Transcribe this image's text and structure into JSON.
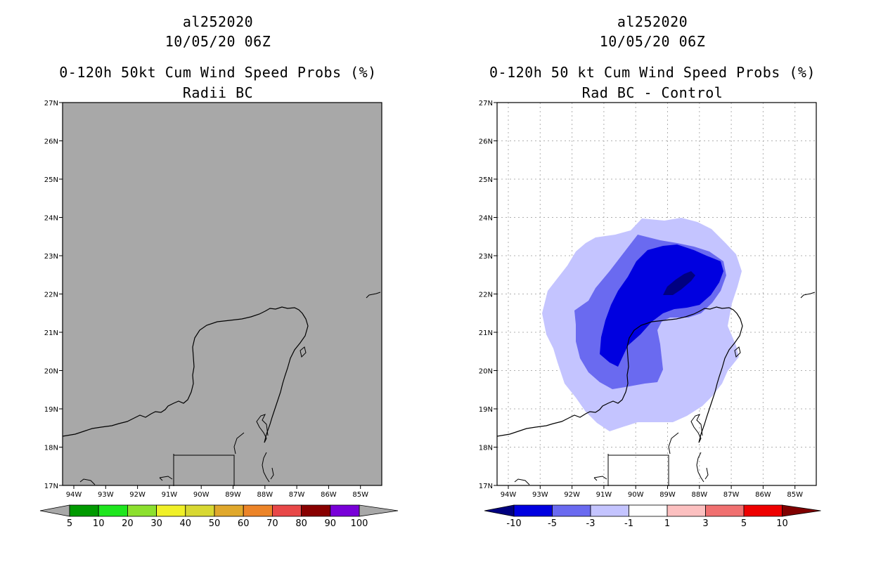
{
  "left_panel": {
    "storm_id": "al252020",
    "datetime": "10/05/20 06Z",
    "product": "0-120h 50kt Cum Wind Speed Probs (%)",
    "subtitle": "Radii BC",
    "background_color": "#a8a8a8",
    "colorbar": {
      "labels": [
        "5",
        "10",
        "20",
        "30",
        "40",
        "50",
        "60",
        "70",
        "80",
        "90",
        "100"
      ],
      "colors": [
        "#009a00",
        "#1ee61e",
        "#8ce02e",
        "#f0f028",
        "#d8d832",
        "#e0a82c",
        "#ec8428",
        "#e84848",
        "#880000",
        "#7800d8"
      ]
    }
  },
  "right_panel": {
    "storm_id": "al252020",
    "datetime": "10/05/20 06Z",
    "product": "0-120h 50 kt Cum Wind Speed Probs (%)",
    "subtitle": "Rad BC - Control",
    "colorbar": {
      "labels": [
        "-10",
        "-5",
        "-3",
        "-1",
        "1",
        "3",
        "5",
        "10"
      ],
      "colors": [
        "#0000e0",
        "#6a6af0",
        "#c4c4ff",
        "#ffffff",
        "#fcc0c0",
        "#f07070",
        "#ee0000"
      ],
      "low_arrow_color": "#000080",
      "high_arrow_color": "#800000"
    }
  },
  "axes": {
    "lat_labels": [
      "27N",
      "26N",
      "25N",
      "24N",
      "23N",
      "22N",
      "21N",
      "20N",
      "19N",
      "18N",
      "17N"
    ],
    "lon_labels": [
      "94W",
      "93W",
      "92W",
      "91W",
      "90W",
      "89W",
      "88W",
      "87W",
      "86W",
      "85W"
    ]
  }
}
